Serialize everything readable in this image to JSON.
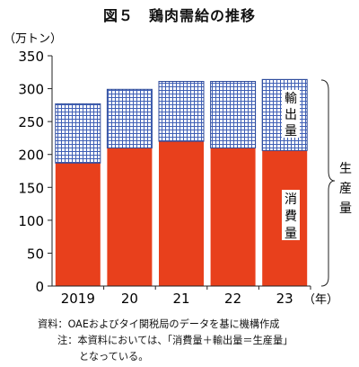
{
  "chart_data": {
    "type": "bar",
    "stacked": true,
    "title": "図５　鶏肉需給の推移",
    "y_unit": "（万トン）",
    "x_unit": "（年）",
    "categories": [
      "2019",
      "20",
      "21",
      "22",
      "23"
    ],
    "ylim": [
      0,
      350
    ],
    "yticks": [
      0,
      50,
      100,
      150,
      200,
      250,
      300,
      350
    ],
    "grid": false,
    "series": [
      {
        "name": "消費量",
        "values": [
          187,
          210,
          220,
          210,
          206
        ],
        "color": "#e8401c",
        "pattern": "solid"
      },
      {
        "name": "輸出量",
        "values": [
          90,
          89,
          91,
          101,
          108
        ],
        "color": "#3f5fb5",
        "pattern": "grid"
      }
    ],
    "total_label": "生産量"
  },
  "notes": {
    "source": "資料：OAEおよびタイ関税局のデータを基に機構作成",
    "note_line1": "注：本資料においては、「消費量＋輸出量＝生産量」",
    "note_line2": "となっている。"
  }
}
